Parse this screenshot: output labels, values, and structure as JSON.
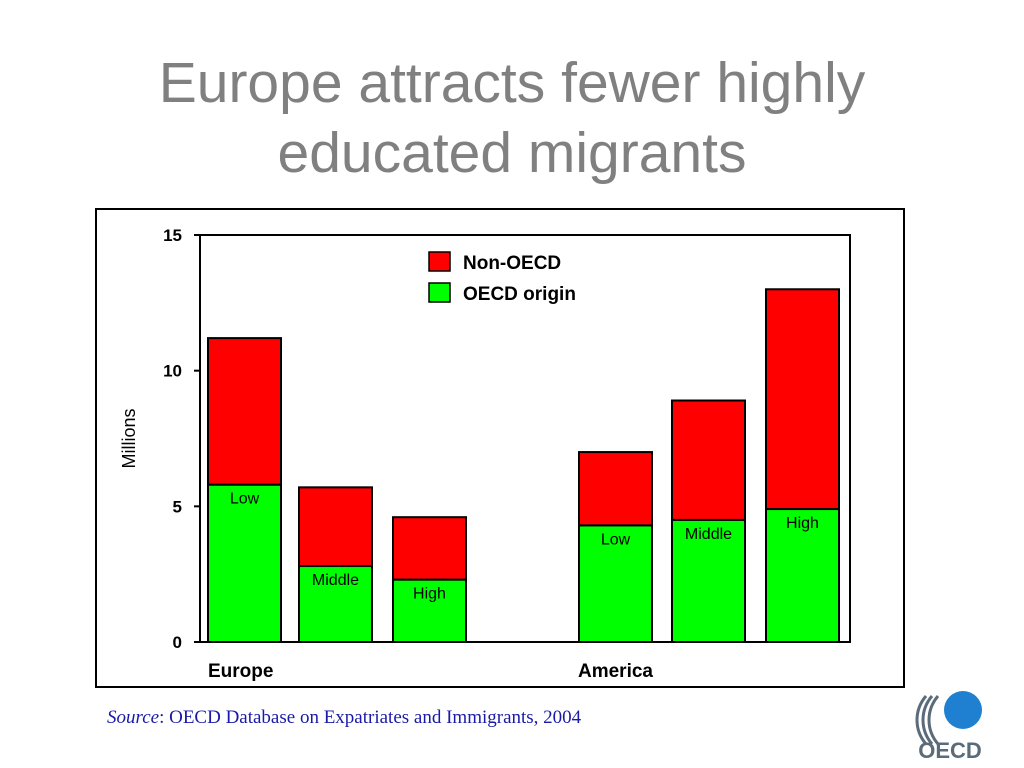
{
  "slide": {
    "title_line1": "Europe attracts fewer highly",
    "title_line2": "educated migrants"
  },
  "source": {
    "label": "Source",
    "text": ": OECD Database on Expatriates and Immigrants, 2004"
  },
  "logo": {
    "text": "OECD",
    "colors": {
      "circle": "#1f7fd1",
      "text": "#5a6b7a"
    }
  },
  "colors": {
    "non_oecd": "#ff0000",
    "oecd_origin": "#00ff00",
    "title": "#808080",
    "source": "#1a1aa8"
  },
  "chart_data": {
    "type": "bar",
    "stacked": true,
    "title": "",
    "ylabel": "Millions",
    "ylim": [
      0,
      15
    ],
    "yticks": [
      0,
      5,
      10,
      15
    ],
    "groups": [
      {
        "name": "Europe",
        "categories": [
          "Low",
          "Middle",
          "High"
        ]
      },
      {
        "name": "America",
        "categories": [
          "Low",
          "Middle",
          "High"
        ]
      }
    ],
    "categories": [
      "Low",
      "Middle",
      "High",
      "Low",
      "Middle",
      "High"
    ],
    "series": [
      {
        "name": "OECD origin",
        "values": [
          5.8,
          2.8,
          2.3,
          4.3,
          4.5,
          4.9
        ]
      },
      {
        "name": "Non-OECD",
        "values": [
          5.4,
          2.9,
          2.3,
          2.7,
          4.4,
          8.1
        ]
      }
    ],
    "legend": {
      "position": "top-center",
      "items": [
        "Non-OECD",
        "OECD origin"
      ]
    },
    "grid": false
  }
}
